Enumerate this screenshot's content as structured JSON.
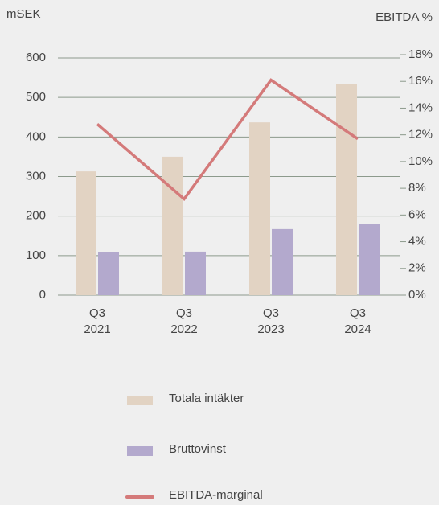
{
  "chart_data": {
    "type": "bar_line",
    "y_label": "mSEK",
    "y2_label": "EBITDA %",
    "categories": [
      "Q3\n2021",
      "Q3\n2022",
      "Q3\n2023",
      "Q3\n2024"
    ],
    "series": [
      {
        "name": "Totala intäkter",
        "color": "#e2d3c3",
        "type": "bar",
        "values": [
          313,
          350,
          437,
          533
        ]
      },
      {
        "name": "Bruttovinst",
        "color": "#b3a9cd",
        "type": "bar",
        "values": [
          108,
          110,
          167,
          179
        ]
      },
      {
        "name": "EBITDA-marginal",
        "color": "#d47a7a",
        "type": "line",
        "axis": "y2",
        "values": [
          12.8,
          7.2,
          16.1,
          11.7
        ]
      }
    ],
    "ylim": [
      0,
      600
    ],
    "yticks": [
      0,
      100,
      200,
      300,
      400,
      500,
      600
    ],
    "y2lim": [
      0,
      18
    ],
    "y2ticks": [
      {
        "value": 0,
        "label": "0%"
      },
      {
        "value": 2,
        "label": "2%"
      },
      {
        "value": 4,
        "label": "4%"
      },
      {
        "value": 6,
        "label": "6%"
      },
      {
        "value": 8,
        "label": "8%"
      },
      {
        "value": 10,
        "label": "10%"
      },
      {
        "value": 12,
        "label": "12%"
      },
      {
        "value": 14,
        "label": "14%"
      },
      {
        "value": 16,
        "label": "16%"
      },
      {
        "value": 18,
        "label": "18%"
      }
    ],
    "grid": true
  }
}
